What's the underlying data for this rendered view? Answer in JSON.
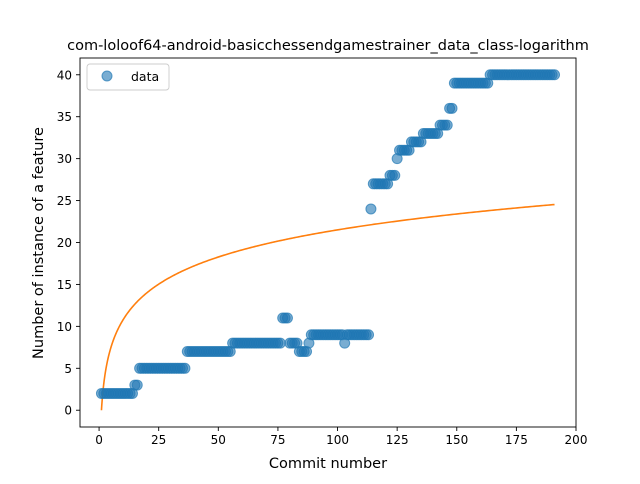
{
  "chart_data": {
    "type": "scatter",
    "title": "com-loloof64-android-basicchessendgamestrainer_data_class-logarithm",
    "xlabel": "Commit number",
    "ylabel": "Number of instance of a feature",
    "xlim": [
      -8,
      200
    ],
    "ylim": [
      -2,
      42
    ],
    "xticks": [
      0,
      25,
      50,
      75,
      100,
      125,
      150,
      175,
      200
    ],
    "yticks": [
      0,
      5,
      10,
      15,
      20,
      25,
      30,
      35,
      40
    ],
    "grid": false,
    "legend": {
      "placement": "upper left",
      "entries": [
        "data"
      ]
    },
    "colors": {
      "data": "#1f77b4",
      "fit": "#ff7f0e"
    },
    "series": [
      {
        "name": "data",
        "kind": "scatter",
        "runs": [
          {
            "x_from": 1,
            "x_to": 14,
            "y": 2
          },
          {
            "x_from": 15,
            "x_to": 16,
            "y": 3
          },
          {
            "x_from": 17,
            "x_to": 36,
            "y": 5
          },
          {
            "x_from": 37,
            "x_to": 55,
            "y": 7
          },
          {
            "x_from": 56,
            "x_to": 76,
            "y": 8
          },
          {
            "x_from": 77,
            "x_to": 79,
            "y": 11
          },
          {
            "x_from": 80,
            "x_to": 83,
            "y": 8
          },
          {
            "x_from": 84,
            "x_to": 87,
            "y": 7
          },
          {
            "x_from": 88,
            "x_to": 88,
            "y": 8
          },
          {
            "x_from": 89,
            "x_to": 102,
            "y": 9
          },
          {
            "x_from": 103,
            "x_to": 103,
            "y": 8
          },
          {
            "x_from": 104,
            "x_to": 113,
            "y": 9
          },
          {
            "x_from": 114,
            "x_to": 114,
            "y": 24
          },
          {
            "x_from": 115,
            "x_to": 121,
            "y": 27
          },
          {
            "x_from": 122,
            "x_to": 124,
            "y": 28
          },
          {
            "x_from": 125,
            "x_to": 125,
            "y": 30
          },
          {
            "x_from": 126,
            "x_to": 130,
            "y": 31
          },
          {
            "x_from": 131,
            "x_to": 135,
            "y": 32
          },
          {
            "x_from": 136,
            "x_to": 142,
            "y": 33
          },
          {
            "x_from": 143,
            "x_to": 146,
            "y": 34
          },
          {
            "x_from": 147,
            "x_to": 148,
            "y": 36
          },
          {
            "x_from": 149,
            "x_to": 163,
            "y": 39
          },
          {
            "x_from": 164,
            "x_to": 191,
            "y": 40
          }
        ]
      },
      {
        "name": "",
        "kind": "line",
        "function": "y = a * ln(x)",
        "a": 4.67,
        "x_range": [
          1,
          191
        ]
      }
    ]
  }
}
